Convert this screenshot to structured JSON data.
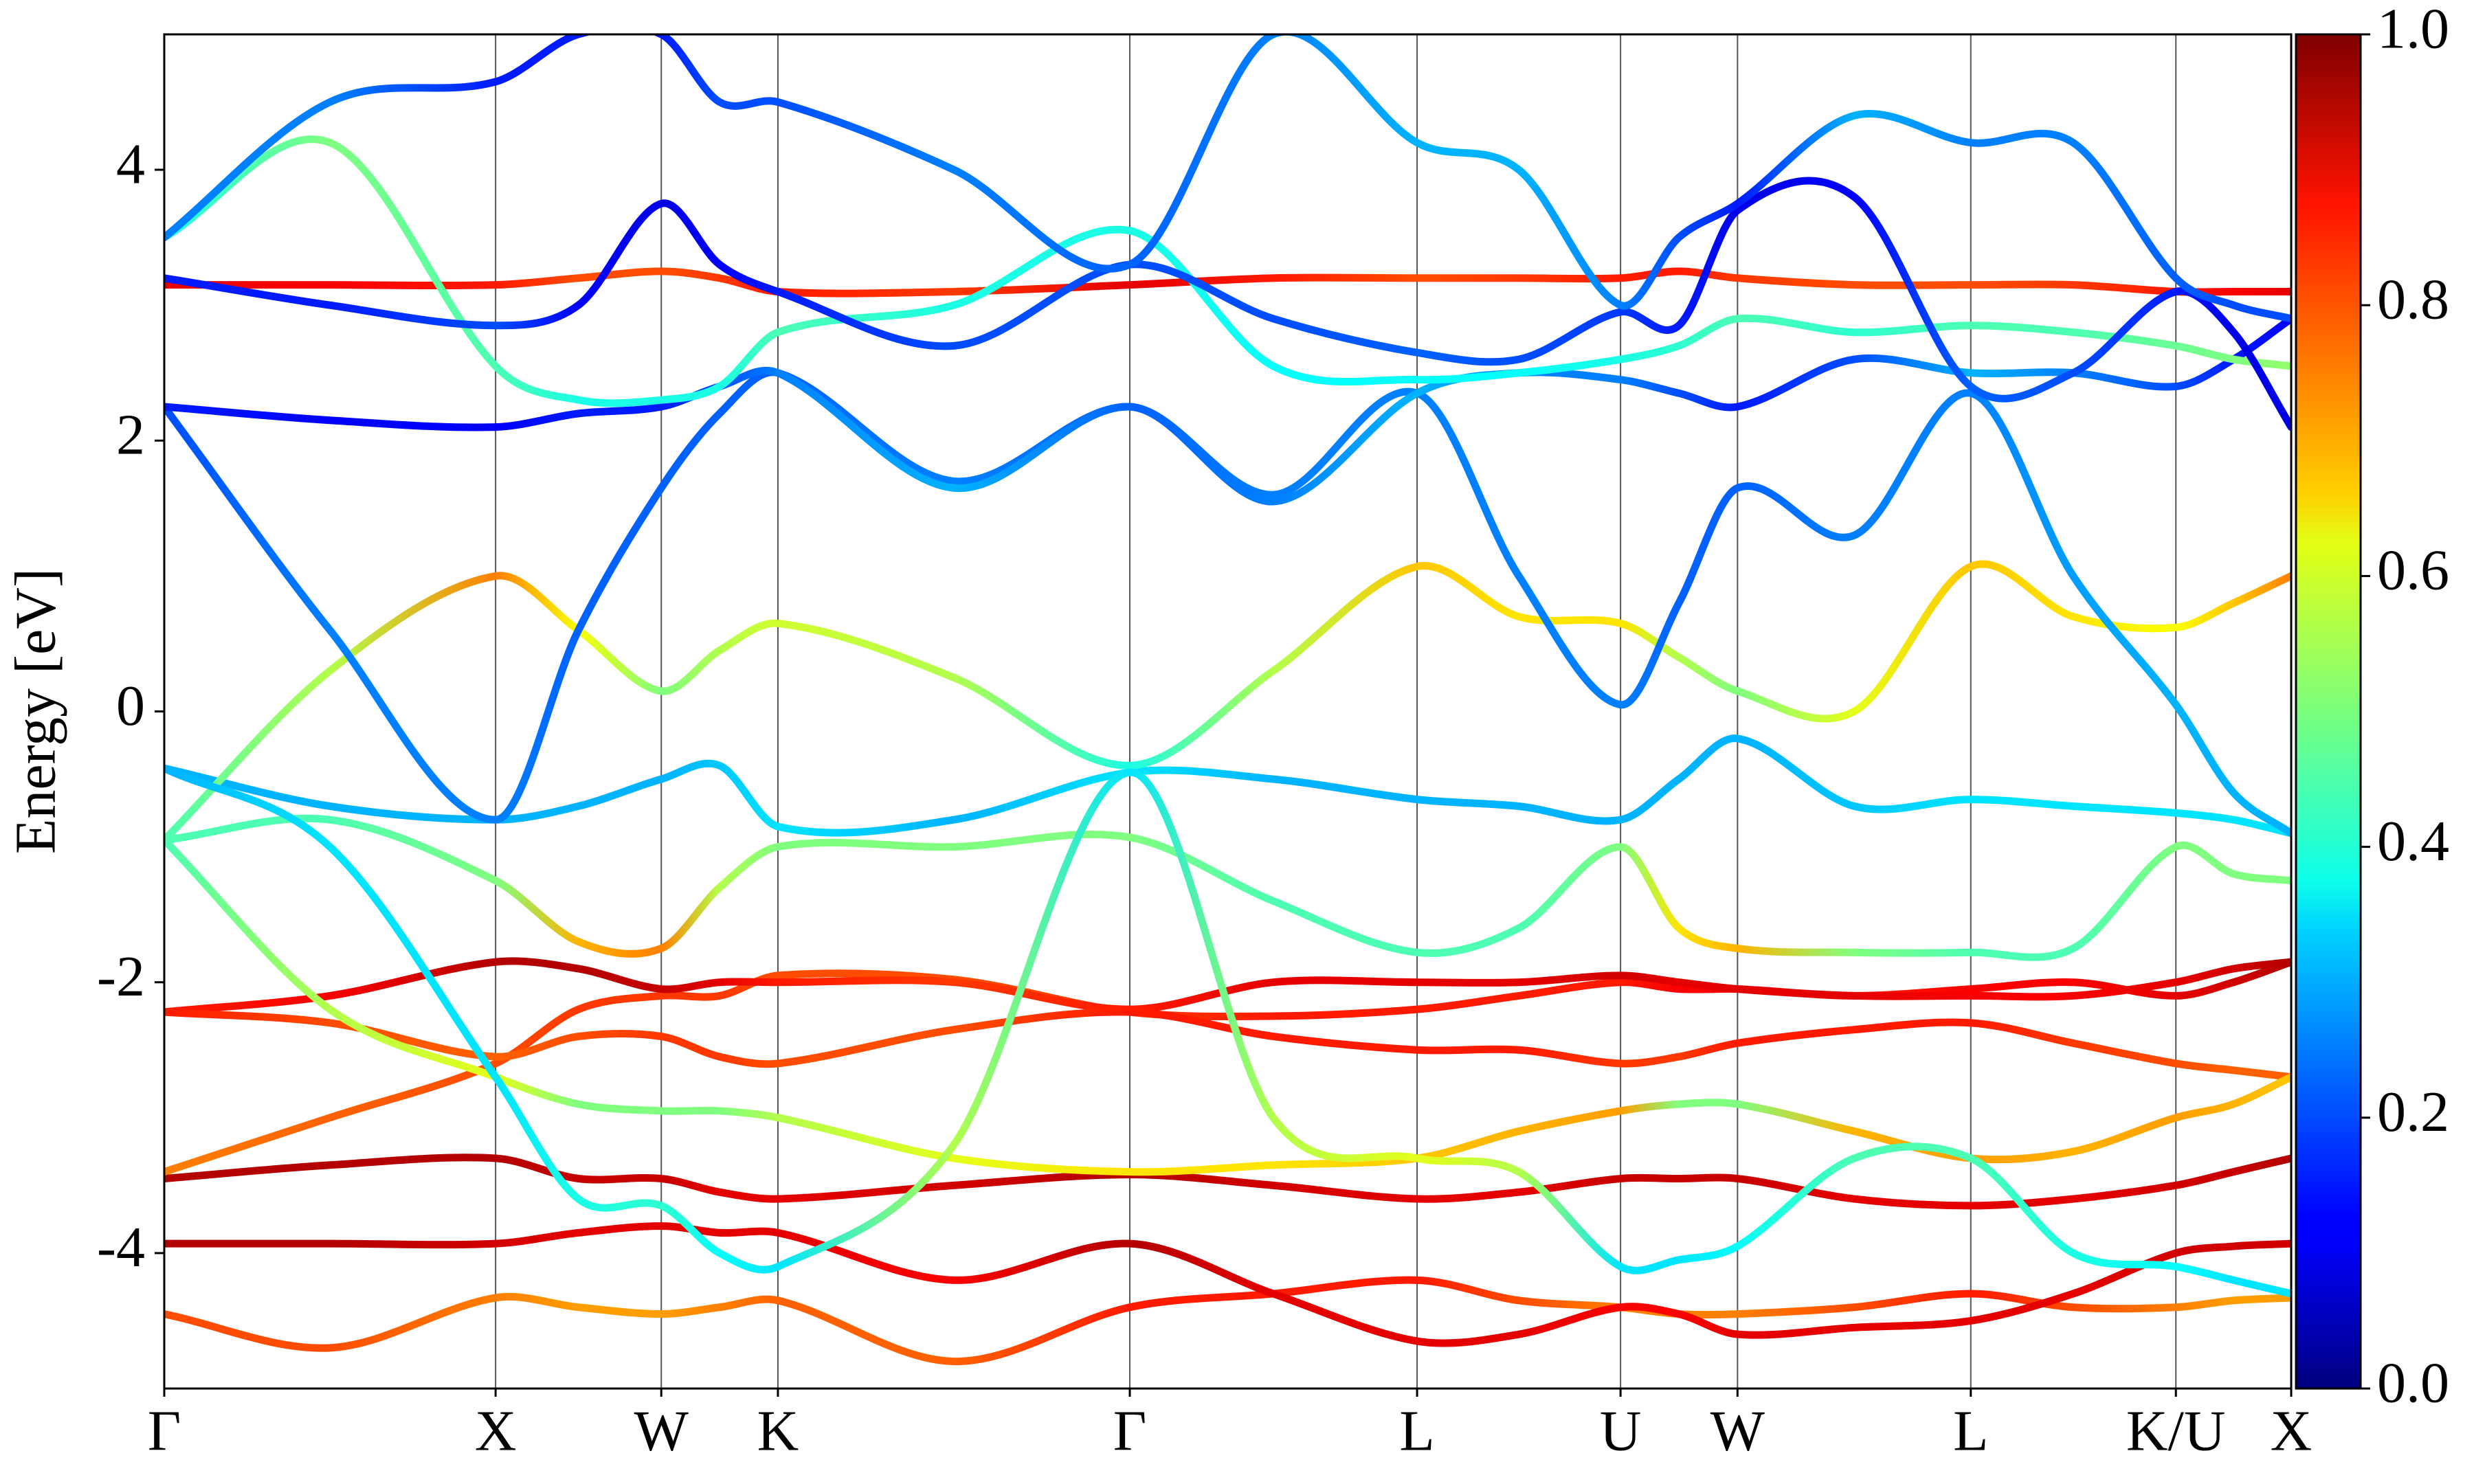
{
  "chart_data": {
    "type": "band-structure",
    "y_label": "Energy [eV]",
    "xlim": [
      0,
      6.419
    ],
    "ylim": [
      -5,
      5
    ],
    "xticks": [
      {
        "value": 0,
        "label": "Γ"
      },
      {
        "value": 1.0,
        "label": "X"
      },
      {
        "value": 1.5,
        "label": "W"
      },
      {
        "value": 1.852,
        "label": "K"
      },
      {
        "value": 2.914,
        "label": "Γ"
      },
      {
        "value": 3.781,
        "label": "L"
      },
      {
        "value": 4.395,
        "label": "U"
      },
      {
        "value": 4.748,
        "label": "W"
      },
      {
        "value": 5.452,
        "label": "L"
      },
      {
        "value": 6.071,
        "label": "K/U"
      },
      {
        "value": 6.419,
        "label": "X"
      }
    ],
    "yticks": [
      -4,
      -2,
      0,
      2,
      4
    ],
    "grid": "x",
    "colormap": "jet",
    "clim": [
      0,
      1
    ],
    "cticks": [
      {
        "value": 0,
        "label": "0.0"
      },
      {
        "value": 0.2,
        "label": "0.2"
      },
      {
        "value": 0.4,
        "label": "0.4"
      },
      {
        "value": 0.6,
        "label": "0.6"
      },
      {
        "value": 0.8,
        "label": "0.8"
      },
      {
        "value": 1,
        "label": "1.0"
      }
    ],
    "x": [
      0,
      0.5,
      1.0,
      1.25,
      1.5,
      1.676,
      1.852,
      2.383,
      2.914,
      3.347,
      3.781,
      4.088,
      4.395,
      4.571,
      4.748,
      5.1,
      5.452,
      5.761,
      6.071,
      6.245,
      6.419
    ],
    "series": [
      {
        "values": [
          -4.45,
          -4.7,
          -4.33,
          -4.4,
          -4.45,
          -4.4,
          -4.35,
          -4.8,
          -4.4,
          -4.3,
          -4.2,
          -4.35,
          -4.4,
          -4.45,
          -4.45,
          -4.4,
          -4.3,
          -4.4,
          -4.4,
          -4.35,
          -4.33
        ],
        "weights": [
          0.8,
          0.8,
          0.75,
          0.72,
          0.72,
          0.75,
          0.78,
          0.78,
          0.85,
          0.85,
          0.85,
          0.8,
          0.75,
          0.75,
          0.75,
          0.8,
          0.85,
          0.8,
          0.75,
          0.72,
          0.72
        ]
      },
      {
        "values": [
          -3.93,
          -3.93,
          -3.93,
          -3.85,
          -3.8,
          -3.85,
          -3.85,
          -4.2,
          -3.93,
          -4.3,
          -4.65,
          -4.6,
          -4.4,
          -4.45,
          -4.6,
          -4.55,
          -4.5,
          -4.3,
          -4.0,
          -3.95,
          -3.93
        ],
        "weights": [
          0.95,
          0.95,
          0.92,
          0.9,
          0.9,
          0.9,
          0.9,
          0.88,
          0.95,
          0.9,
          0.9,
          0.9,
          0.88,
          0.88,
          0.9,
          0.9,
          0.9,
          0.9,
          0.92,
          0.92,
          0.92
        ]
      },
      {
        "values": [
          -3.45,
          -3.35,
          -3.3,
          -3.45,
          -3.45,
          -3.55,
          -3.6,
          -3.5,
          -3.42,
          -3.5,
          -3.6,
          -3.55,
          -3.45,
          -3.45,
          -3.45,
          -3.6,
          -3.65,
          -3.6,
          -3.5,
          -3.4,
          -3.3
        ],
        "weights": [
          0.95,
          0.95,
          0.95,
          0.93,
          0.93,
          0.9,
          0.9,
          0.92,
          0.95,
          0.92,
          0.9,
          0.9,
          0.93,
          0.93,
          0.93,
          0.9,
          0.9,
          0.9,
          0.92,
          0.93,
          0.95
        ]
      },
      {
        "values": [
          -3.4,
          -3.0,
          -2.6,
          -2.2,
          -2.1,
          -2.1,
          -1.95,
          -1.98,
          -2.22,
          -2.25,
          -2.2,
          -2.1,
          -2.0,
          -2.05,
          -2.05,
          -2.1,
          -2.05,
          -2.0,
          -2.1,
          -2.0,
          -1.85
        ],
        "weights": [
          0.75,
          0.78,
          0.8,
          0.82,
          0.82,
          0.82,
          0.8,
          0.8,
          0.82,
          0.85,
          0.85,
          0.85,
          0.85,
          0.88,
          0.88,
          0.85,
          0.88,
          0.88,
          0.9,
          0.92,
          0.95
        ]
      },
      {
        "values": [
          -2.22,
          -2.1,
          -1.85,
          -1.9,
          -2.05,
          -2.0,
          -2.0,
          -2.0,
          -2.2,
          -2.0,
          -2.0,
          -2.0,
          -1.95,
          -2.0,
          -2.05,
          -2.1,
          -2.1,
          -2.1,
          -2.0,
          -1.9,
          -1.85
        ],
        "weights": [
          0.85,
          0.88,
          0.95,
          0.95,
          0.93,
          0.9,
          0.85,
          0.82,
          0.85,
          0.9,
          0.9,
          0.9,
          0.92,
          0.9,
          0.9,
          0.9,
          0.88,
          0.88,
          0.9,
          0.92,
          0.95
        ]
      },
      {
        "values": [
          -2.22,
          -2.3,
          -2.55,
          -2.4,
          -2.4,
          -2.55,
          -2.6,
          -2.35,
          -2.22,
          -2.4,
          -2.5,
          -2.5,
          -2.6,
          -2.55,
          -2.45,
          -2.35,
          -2.3,
          -2.45,
          -2.6,
          -2.65,
          -2.7
        ],
        "weights": [
          0.85,
          0.8,
          0.78,
          0.8,
          0.82,
          0.82,
          0.8,
          0.8,
          0.85,
          0.85,
          0.85,
          0.85,
          0.82,
          0.82,
          0.85,
          0.85,
          0.85,
          0.82,
          0.8,
          0.78,
          0.78
        ]
      },
      {
        "values": [
          -0.95,
          -2.2,
          -2.7,
          -2.9,
          -2.95,
          -2.95,
          -3.0,
          -3.3,
          -3.4,
          -3.35,
          -3.3,
          -3.1,
          -2.95,
          -2.9,
          -2.9,
          -3.1,
          -3.3,
          -3.25,
          -3.0,
          -2.9,
          -2.7
        ],
        "weights": [
          0.45,
          0.55,
          0.6,
          0.5,
          0.5,
          0.5,
          0.55,
          0.6,
          0.65,
          0.65,
          0.68,
          0.7,
          0.72,
          0.5,
          0.5,
          0.7,
          0.72,
          0.7,
          0.72,
          0.7,
          0.68
        ]
      },
      {
        "values": [
          -0.42,
          -0.7,
          -0.8,
          -0.7,
          -0.5,
          -0.4,
          -0.85,
          -0.8,
          -0.45,
          -0.5,
          -0.65,
          -0.7,
          -0.8,
          -0.5,
          -0.2,
          -0.7,
          -0.65,
          -0.7,
          -0.75,
          -0.8,
          -0.9
        ],
        "weights": [
          0.3,
          0.3,
          0.3,
          0.3,
          0.3,
          0.32,
          0.35,
          0.3,
          0.35,
          0.3,
          0.3,
          0.3,
          0.3,
          0.3,
          0.3,
          0.32,
          0.35,
          0.35,
          0.35,
          0.35,
          0.35
        ]
      },
      {
        "values": [
          -0.95,
          -0.8,
          -1.25,
          -1.7,
          -1.75,
          -1.3,
          -1.0,
          -1.0,
          -0.93,
          -1.4,
          -1.78,
          -1.6,
          -1.0,
          -1.6,
          -1.75,
          -1.78,
          -1.78,
          -1.75,
          -1.0,
          -1.2,
          -1.25
        ],
        "weights": [
          0.45,
          0.45,
          0.5,
          0.7,
          0.75,
          0.55,
          0.5,
          0.5,
          0.5,
          0.45,
          0.45,
          0.45,
          0.5,
          0.65,
          0.7,
          0.5,
          0.45,
          0.45,
          0.5,
          0.5,
          0.5
        ]
      },
      {
        "values": [
          -0.95,
          0.3,
          1.0,
          0.6,
          0.15,
          0.45,
          0.65,
          0.25,
          -0.4,
          0.3,
          1.07,
          0.7,
          0.65,
          0.4,
          0.15,
          0.0,
          1.07,
          0.7,
          0.62,
          0.8,
          1.0
        ],
        "weights": [
          0.45,
          0.55,
          0.75,
          0.62,
          0.5,
          0.55,
          0.58,
          0.55,
          0.4,
          0.55,
          0.68,
          0.65,
          0.65,
          0.55,
          0.5,
          0.6,
          0.68,
          0.65,
          0.62,
          0.68,
          0.75
        ]
      },
      {
        "values": [
          2.25,
          0.6,
          -0.8,
          0.6,
          1.65,
          2.2,
          2.5,
          1.7,
          2.25,
          1.6,
          2.35,
          1.0,
          0.05,
          0.8,
          1.65,
          1.3,
          2.35,
          1.0,
          0.05,
          -0.6,
          -0.9
        ],
        "weights": [
          0.2,
          0.25,
          0.25,
          0.22,
          0.22,
          0.22,
          0.22,
          0.25,
          0.22,
          0.25,
          0.25,
          0.25,
          0.25,
          0.22,
          0.22,
          0.25,
          0.25,
          0.28,
          0.3,
          0.3,
          0.3
        ]
      },
      {
        "values": [
          2.25,
          2.15,
          2.1,
          2.2,
          2.25,
          2.4,
          2.5,
          1.65,
          2.25,
          1.55,
          2.35,
          2.5,
          2.45,
          2.35,
          2.25,
          2.6,
          2.5,
          2.5,
          2.4,
          2.6,
          2.9
        ],
        "weights": [
          0.15,
          0.12,
          0.12,
          0.15,
          0.15,
          0.2,
          0.25,
          0.3,
          0.22,
          0.25,
          0.3,
          0.25,
          0.25,
          0.2,
          0.15,
          0.2,
          0.3,
          0.25,
          0.2,
          0.15,
          0.12
        ]
      },
      {
        "values": [
          3.15,
          3.15,
          3.15,
          3.2,
          3.25,
          3.2,
          3.1,
          3.1,
          3.15,
          3.2,
          3.2,
          3.2,
          3.2,
          3.25,
          3.2,
          3.15,
          3.15,
          3.15,
          3.1,
          3.1,
          3.1
        ],
        "weights": [
          0.9,
          0.88,
          0.85,
          0.8,
          0.8,
          0.82,
          0.85,
          0.82,
          0.9,
          0.85,
          0.8,
          0.82,
          0.85,
          0.85,
          0.82,
          0.8,
          0.8,
          0.82,
          0.85,
          0.88,
          0.9
        ]
      },
      {
        "values": [
          3.5,
          4.2,
          2.55,
          2.3,
          2.3,
          2.4,
          2.8,
          3.0,
          3.55,
          2.55,
          2.45,
          2.5,
          2.6,
          2.7,
          2.9,
          2.8,
          2.85,
          2.8,
          2.7,
          2.6,
          2.55
        ],
        "weights": [
          0.4,
          0.5,
          0.45,
          0.4,
          0.4,
          0.4,
          0.45,
          0.4,
          0.4,
          0.38,
          0.38,
          0.38,
          0.4,
          0.42,
          0.45,
          0.42,
          0.45,
          0.45,
          0.48,
          0.5,
          0.52
        ]
      },
      {
        "values": [
          3.2,
          3.0,
          2.85,
          3.0,
          3.75,
          3.3,
          3.1,
          2.7,
          3.3,
          2.9,
          2.65,
          2.6,
          2.95,
          2.85,
          3.7,
          3.8,
          2.4,
          2.5,
          3.1,
          2.8,
          2.1
        ],
        "weights": [
          0.15,
          0.15,
          0.2,
          0.12,
          0.1,
          0.12,
          0.15,
          0.2,
          0.2,
          0.2,
          0.22,
          0.2,
          0.18,
          0.15,
          0.1,
          0.12,
          0.22,
          0.2,
          0.15,
          0.1,
          0.1
        ]
      },
      {
        "values": [
          3.5,
          4.5,
          4.65,
          5.0,
          5.0,
          4.5,
          4.5,
          4.0,
          3.3,
          5.0,
          4.2,
          4.0,
          3.0,
          3.5,
          3.75,
          4.4,
          4.2,
          4.2,
          3.2,
          3.0,
          2.9
        ],
        "weights": [
          0.25,
          0.25,
          0.15,
          0.15,
          0.15,
          0.2,
          0.2,
          0.25,
          0.22,
          0.25,
          0.3,
          0.3,
          0.25,
          0.2,
          0.15,
          0.3,
          0.25,
          0.25,
          0.22,
          0.2,
          0.2
        ]
      },
      {
        "values": [
          -0.42,
          -1.0,
          -2.7,
          -3.6,
          -3.65,
          -4.0,
          -4.1,
          -3.2,
          -0.45,
          -3.0,
          -3.3,
          -3.4,
          -4.1,
          -4.05,
          -3.95,
          -3.3,
          -3.3,
          -4.0,
          -4.1,
          -4.2,
          -4.3
        ],
        "weights": [
          0.3,
          0.35,
          0.35,
          0.4,
          0.42,
          0.38,
          0.35,
          0.55,
          0.35,
          0.55,
          0.6,
          0.55,
          0.35,
          0.35,
          0.38,
          0.45,
          0.45,
          0.4,
          0.38,
          0.35,
          0.35
        ]
      }
    ]
  }
}
